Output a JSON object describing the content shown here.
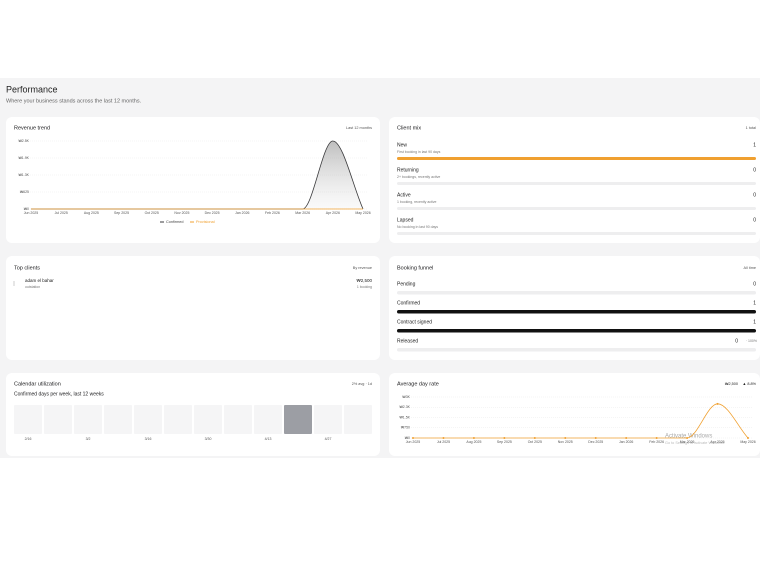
{
  "header": {
    "title": "Performance",
    "subtitle": "Where your business stands across the last 12 months."
  },
  "chart_data": [
    {
      "type": "area",
      "title": "Revenue trend",
      "note": "Last 12 months",
      "categories": [
        "Jun 2025",
        "Jul 2025",
        "Aug 2025",
        "Sep 2025",
        "Oct 2025",
        "Nov 2025",
        "Dec 2025",
        "Jan 2026",
        "Feb 2026",
        "Mar 2026",
        "Apr 2026",
        "May 2026"
      ],
      "series": [
        {
          "name": "Confirmed",
          "color": "#3a3a3c",
          "values": [
            0,
            0,
            0,
            0,
            0,
            0,
            0,
            0,
            0,
            0,
            2500,
            0
          ]
        },
        {
          "name": "Provisional",
          "color": "#f0a030",
          "values": [
            0,
            0,
            0,
            0,
            0,
            0,
            0,
            0,
            0,
            0,
            0,
            0
          ]
        }
      ],
      "ylim": [
        0,
        2500
      ],
      "yticks": [
        {
          "value": 0,
          "label": "₩0"
        },
        {
          "value": 625,
          "label": "₩625"
        },
        {
          "value": 1250,
          "label": "₩1.3K"
        },
        {
          "value": 1875,
          "label": "₩1.9K"
        },
        {
          "value": 2500,
          "label": "₩2.5K"
        }
      ],
      "grid": true
    },
    {
      "type": "tiles",
      "title": "Calendar utilization",
      "note": "2% avg · 1d",
      "subtitle": "Confirmed days per week, last 12 weeks",
      "categories": [
        "2/16",
        null,
        "3/2",
        null,
        "3/16",
        null,
        "3/30",
        null,
        "4/13",
        null,
        "4/27",
        null
      ],
      "values": [
        0,
        0,
        0,
        0,
        0,
        0,
        0,
        0,
        0,
        29,
        0,
        0
      ],
      "color": "#9c9ea4"
    },
    {
      "type": "line",
      "title": "Average day rate",
      "value_label": "₩2,500",
      "change": "▲ 8.8%",
      "categories": [
        "Jun 2025",
        "Jul 2025",
        "Aug 2025",
        "Sep 2025",
        "Oct 2025",
        "Nov 2025",
        "Dec 2025",
        "Jan 2026",
        "Feb 2026",
        "Mar 2026",
        "Apr 2026",
        "May 2026"
      ],
      "values": [
        0,
        0,
        0,
        0,
        0,
        0,
        0,
        0,
        0,
        0,
        2500,
        0
      ],
      "color": "#f0a030",
      "ylim": [
        0,
        3000
      ],
      "yticks": [
        {
          "value": 0,
          "label": "₩0"
        },
        {
          "value": 750,
          "label": "₩750"
        },
        {
          "value": 1500,
          "label": "₩1.5K"
        },
        {
          "value": 2250,
          "label": "₩2.3K"
        },
        {
          "value": 3000,
          "label": "₩3K"
        }
      ],
      "grid": true
    }
  ],
  "client_mix": {
    "title": "Client mix",
    "note": "1 total",
    "color": "#f0a030",
    "rows": [
      {
        "label": "New",
        "description": "First booking in last 90 days",
        "count": 1
      },
      {
        "label": "Returning",
        "description": "2+ bookings, recently active",
        "count": 0
      },
      {
        "label": "Active",
        "description": "1 booking, recently active",
        "count": 0
      },
      {
        "label": "Lapsed",
        "description": "No booking in last 90 days",
        "count": 0
      }
    ]
  },
  "top_clients": {
    "title": "Top clients",
    "note": "By revenue",
    "rows": [
      {
        "name": "adam el bahar",
        "detail": "outstation",
        "revenue": "₩2,500",
        "bookings": "1 booking"
      }
    ]
  },
  "booking_funnel": {
    "title": "Booking funnel",
    "note": "All time",
    "color": "#111111",
    "rows": [
      {
        "label": "Pending",
        "count": 0
      },
      {
        "label": "Confirmed",
        "count": 1
      },
      {
        "label": "Contract signed",
        "count": 1
      },
      {
        "label": "Released",
        "count": 0,
        "share": "· 100%"
      }
    ]
  },
  "watermark": {
    "title": "Activate Windows",
    "subtitle": "Go to Settings to activate Windows."
  }
}
